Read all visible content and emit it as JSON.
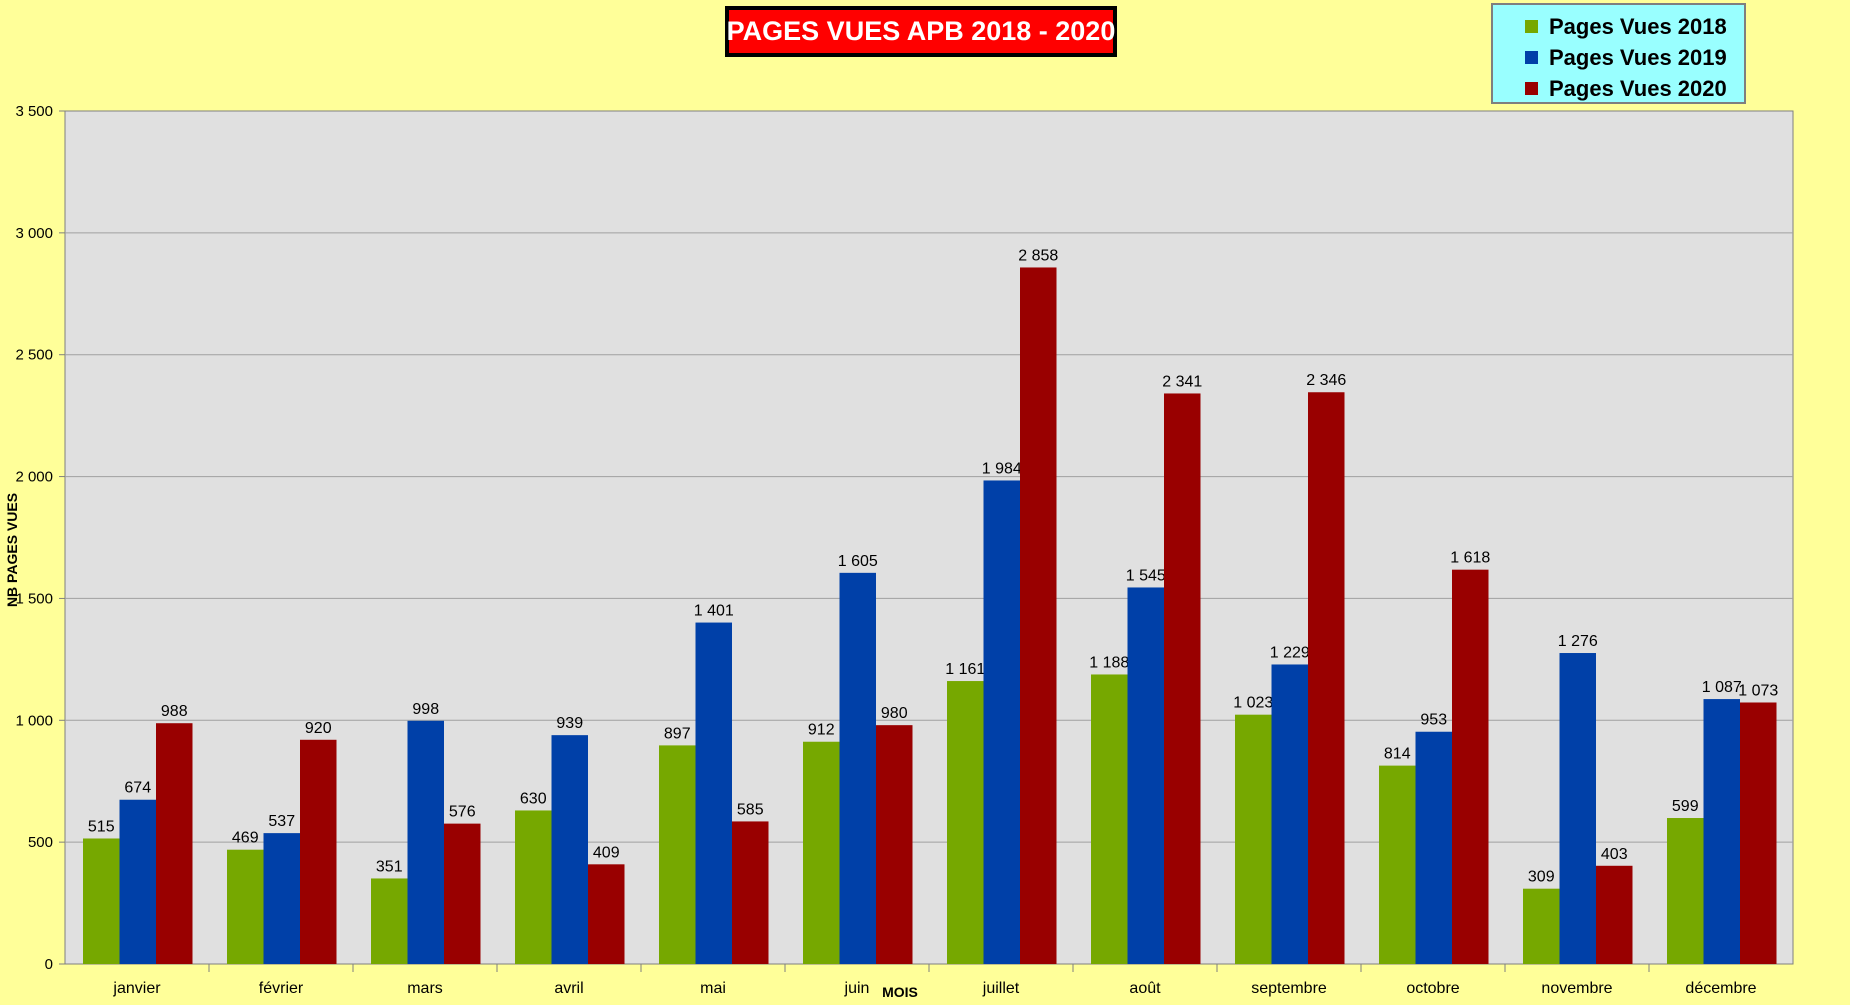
{
  "chart_data": {
    "type": "bar",
    "title": "PAGES VUES APB 2018 - 2020",
    "xlabel": "MOIS",
    "ylabel": "NB PAGES VUES",
    "categories": [
      "janvier",
      "février",
      "mars",
      "avril",
      "mai",
      "juin",
      "juillet",
      "août",
      "septembre",
      "octobre",
      "novembre",
      "décembre"
    ],
    "series": [
      {
        "name": "Pages Vues 2018",
        "color": "#76a800",
        "values": [
          515,
          469,
          351,
          630,
          897,
          912,
          1161,
          1188,
          1023,
          814,
          309,
          599
        ]
      },
      {
        "name": "Pages Vues 2019",
        "color": "#0040a8",
        "values": [
          674,
          537,
          998,
          939,
          1401,
          1605,
          1984,
          1545,
          1229,
          953,
          1276,
          1087
        ]
      },
      {
        "name": "Pages Vues 2020",
        "color": "#990000",
        "values": [
          988,
          920,
          576,
          409,
          585,
          980,
          2858,
          2341,
          2346,
          1618,
          403,
          1073
        ]
      }
    ],
    "ylim": [
      0,
      3500
    ],
    "yticks": [
      0,
      500,
      1000,
      1500,
      2000,
      2500,
      3000,
      3500
    ],
    "ytick_labels": [
      "0",
      "500",
      "1 000",
      "1 500",
      "2 000",
      "2 500",
      "3 000",
      "3 500"
    ],
    "grid": true,
    "legend_position": "top-right",
    "plot_background": "#e0e0e0"
  }
}
